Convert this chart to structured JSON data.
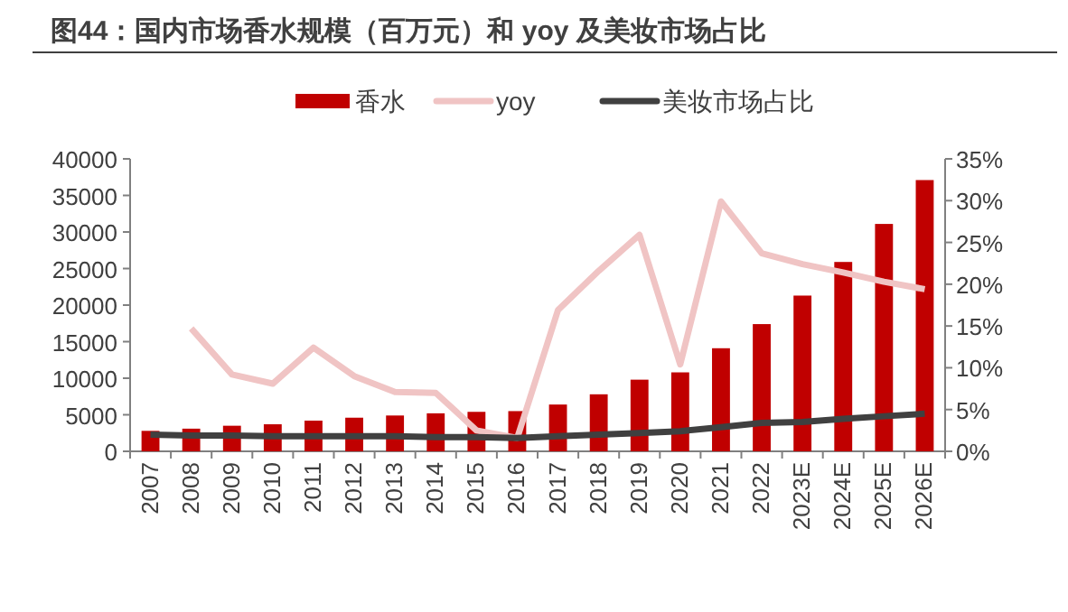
{
  "chart_data": {
    "type": "bar",
    "title": "图44：国内市场香水规模（百万元）和 yoy 及美妆市场占比",
    "categories": [
      "2007",
      "2008",
      "2009",
      "2010",
      "2011",
      "2012",
      "2013",
      "2014",
      "2015",
      "2016",
      "2017",
      "2018",
      "2019",
      "2020",
      "2021",
      "2022",
      "2023E",
      "2024E",
      "2025E",
      "2026E"
    ],
    "series": [
      {
        "name": "香水",
        "color": "#c00000",
        "values": [
          2800,
          3100,
          3500,
          3700,
          4200,
          4600,
          4900,
          5200,
          5400,
          5500,
          6400,
          7800,
          9800,
          10800,
          14100,
          17400,
          21300,
          25900,
          31100,
          37100
        ]
      },
      {
        "name": "yoy",
        "type": "line",
        "axis": "y2",
        "color": "#f0c4c4",
        "values": [
          null,
          14.7,
          9.2,
          8.1,
          12.4,
          9.0,
          7.1,
          7.0,
          2.5,
          1.6,
          16.9,
          21.6,
          25.9,
          10.4,
          29.9,
          23.7,
          22.4,
          21.4,
          20.3,
          19.4
        ]
      },
      {
        "name": "美妆市场占比",
        "type": "line",
        "axis": "y2",
        "color": "#404040",
        "values": [
          2.0,
          1.9,
          1.9,
          1.8,
          1.8,
          1.8,
          1.8,
          1.7,
          1.7,
          1.6,
          1.8,
          2.0,
          2.2,
          2.4,
          2.9,
          3.4,
          3.5,
          3.9,
          4.2,
          4.5
        ]
      }
    ],
    "ylim": [
      0,
      40000
    ],
    "yticks": [
      0,
      5000,
      10000,
      15000,
      20000,
      25000,
      30000,
      35000,
      40000
    ],
    "y2lim": [
      0,
      35
    ],
    "y2ticks": [
      {
        "value": 0,
        "label": "0%"
      },
      {
        "value": 5,
        "label": "5%"
      },
      {
        "value": 10,
        "label": "10%"
      },
      {
        "value": 15,
        "label": "15%"
      },
      {
        "value": 20,
        "label": "20%"
      },
      {
        "value": 25,
        "label": "25%"
      },
      {
        "value": 30,
        "label": "30%"
      },
      {
        "value": 35,
        "label": "35%"
      }
    ],
    "legend": "top",
    "grid": false,
    "line_style": "solid",
    "marker": "none"
  }
}
